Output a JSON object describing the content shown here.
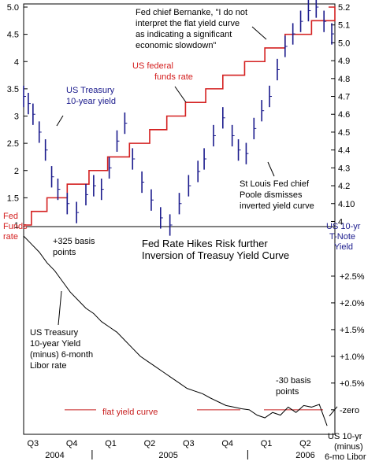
{
  "chart_data": [
    {
      "type": "line",
      "title": "",
      "left_axis": {
        "ticks": [
          "5.0",
          "4.5",
          "4",
          "3.5",
          "3",
          "2.5",
          "2",
          "1.5",
          "1"
        ],
        "ylim": [
          1,
          5
        ]
      },
      "right_axis": {
        "ticks": [
          "5.2",
          "5.1",
          "5.0",
          "4.9",
          "4.8",
          "4.7",
          "4.6",
          "4.5",
          "4.4",
          "4.3",
          "4.2",
          "4.10",
          "4"
        ],
        "ylim": [
          3.98,
          5.2
        ]
      },
      "series": [
        {
          "name": "US federal funds rate",
          "axis": "left",
          "color": "#d42020",
          "x": [
            2004.5,
            2004.55,
            2004.65,
            2004.78,
            2004.92,
            2005.04,
            2005.18,
            2005.31,
            2005.42,
            2005.54,
            2005.67,
            2005.78,
            2005.92,
            2006.05,
            2006.18,
            2006.35,
            2006.5
          ],
          "values": [
            1.0,
            1.25,
            1.5,
            1.75,
            2.0,
            2.25,
            2.5,
            2.75,
            3.0,
            3.25,
            3.5,
            3.75,
            4.0,
            4.25,
            4.5,
            4.75,
            5.0
          ]
        },
        {
          "name": "US Treasury 10-year yield",
          "axis": "right",
          "color": "#1a1a8c",
          "x": [
            2004.5,
            2004.53,
            2004.56,
            2004.6,
            2004.64,
            2004.68,
            2004.72,
            2004.78,
            2004.84,
            2004.9,
            2004.95,
            2005.0,
            2005.05,
            2005.1,
            2005.15,
            2005.2,
            2005.26,
            2005.32,
            2005.38,
            2005.44,
            2005.5,
            2005.56,
            2005.62,
            2005.66,
            2005.72,
            2005.78,
            2005.84,
            2005.88,
            2005.93,
            2005.98,
            2006.03,
            2006.08,
            2006.13,
            2006.18,
            2006.23,
            2006.28,
            2006.33,
            2006.38,
            2006.43,
            2006.48
          ],
          "values": [
            4.7,
            4.66,
            4.6,
            4.5,
            4.4,
            4.25,
            4.18,
            4.1,
            4.05,
            4.15,
            4.2,
            4.18,
            4.3,
            4.45,
            4.55,
            4.35,
            4.22,
            4.12,
            4.02,
            3.98,
            4.1,
            4.2,
            4.28,
            4.35,
            4.48,
            4.58,
            4.48,
            4.4,
            4.38,
            4.52,
            4.62,
            4.7,
            4.85,
            4.98,
            5.05,
            5.12,
            5.18,
            5.2,
            5.12,
            5.05
          ]
        }
      ],
      "annotations": [
        "Fed chief Bernanke, \"I do not interpret the flat yield curve as indicating a significant economic slowdown\"",
        "US federal funds rate",
        "US Treasury 10-year yield",
        "St Louis Fed chief Poole dismisses inverted yield curve"
      ],
      "left_label": "Fed Funds rate",
      "right_label": "US 10-yr T-Note Yield",
      "grid": false
    },
    {
      "type": "line",
      "title": "Fed Rate Hikes Risk further Inversion of Treasuy Yield Curve",
      "right_axis": {
        "ticks": [
          "+2.5%",
          "+2.0%",
          "+1.5%",
          "+1.0%",
          "+0.5%",
          "zero"
        ],
        "ylim": [
          -0.4,
          3.25
        ]
      },
      "series": [
        {
          "name": "US Treasury 10-year Yield (minus) 6-month Libor rate",
          "color": "#000000",
          "x": [
            2004.5,
            2004.55,
            2004.6,
            2004.65,
            2004.7,
            2004.75,
            2004.8,
            2004.85,
            2004.9,
            2004.95,
            2005.0,
            2005.05,
            2005.1,
            2005.15,
            2005.2,
            2005.25,
            2005.3,
            2005.35,
            2005.4,
            2005.45,
            2005.5,
            2005.55,
            2005.6,
            2005.65,
            2005.7,
            2005.75,
            2005.8,
            2005.85,
            2005.9,
            2005.95,
            2006.0,
            2006.05,
            2006.1,
            2006.15,
            2006.2,
            2006.25,
            2006.3,
            2006.35,
            2006.4,
            2006.45
          ],
          "values": [
            3.25,
            3.1,
            2.95,
            2.75,
            2.6,
            2.4,
            2.2,
            2.05,
            1.9,
            1.8,
            1.65,
            1.55,
            1.45,
            1.3,
            1.15,
            1.0,
            0.9,
            0.8,
            0.7,
            0.6,
            0.5,
            0.4,
            0.35,
            0.3,
            0.22,
            0.15,
            0.08,
            0.05,
            0.02,
            0.0,
            -0.1,
            -0.15,
            -0.05,
            -0.1,
            0.05,
            -0.05,
            0.08,
            0.05,
            0.1,
            -0.3
          ]
        }
      ],
      "reference_line": {
        "label": "flat yield curve",
        "value": 0.0,
        "color": "#c82020"
      },
      "annotations": [
        "+325 basis points",
        "-30 basis points",
        "US Treasury 10-year Yield (minus) 6-month Libor rate"
      ],
      "right_label": "US 10-yr (minus) 6-mo Libor",
      "x_axis": {
        "quarters": [
          "Q3",
          "Q4",
          "Q1",
          "Q2",
          "Q3",
          "Q4",
          "Q1",
          "Q2"
        ],
        "years": [
          "2004",
          "2005",
          "2006"
        ]
      },
      "grid": false
    }
  ]
}
